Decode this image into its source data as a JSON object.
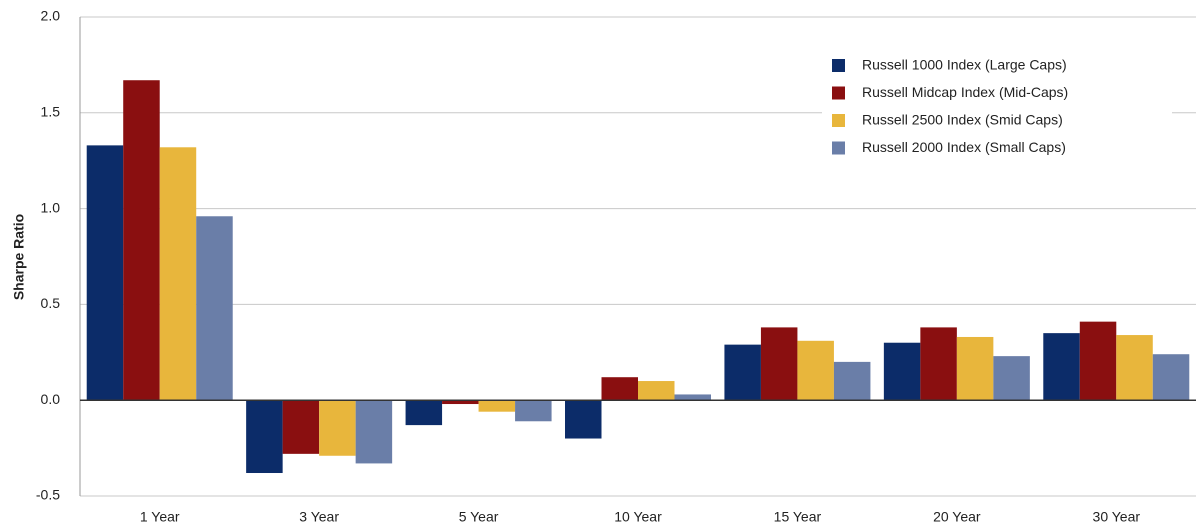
{
  "chart_data": {
    "type": "bar",
    "y_label": "Sharpe Ratio",
    "categories": [
      "1 Year",
      "3 Year",
      "5 Year",
      "10 Year",
      "15 Year",
      "20 Year",
      "30 Year"
    ],
    "series": [
      {
        "name": "Russell 1000 Index (Large Caps)",
        "color": "#0c2c69",
        "values": [
          1.33,
          -0.38,
          -0.13,
          -0.2,
          0.29,
          0.3,
          0.35
        ]
      },
      {
        "name": "Russell Midcap Index (Mid-Caps)",
        "color": "#8a0f10",
        "values": [
          1.67,
          -0.28,
          -0.02,
          0.12,
          0.38,
          0.38,
          0.41
        ]
      },
      {
        "name": "Russell 2500 Index (Smid Caps)",
        "color": "#e8b63c",
        "values": [
          1.32,
          -0.29,
          -0.06,
          0.1,
          0.31,
          0.33,
          0.34
        ]
      },
      {
        "name": "Russell 2000 Index (Small Caps)",
        "color": "#6a7ea8",
        "values": [
          0.96,
          -0.33,
          -0.11,
          0.03,
          0.2,
          0.23,
          0.24
        ]
      }
    ],
    "ylim": [
      -0.5,
      2.0
    ],
    "yticks": [
      -0.5,
      {
        "value": 0,
        "label": "0.0"
      },
      0.5,
      {
        "value": 1,
        "label": "1.0"
      },
      1.5,
      {
        "value": 2,
        "label": "2.0"
      }
    ],
    "grid": true,
    "legend": "upper right"
  }
}
